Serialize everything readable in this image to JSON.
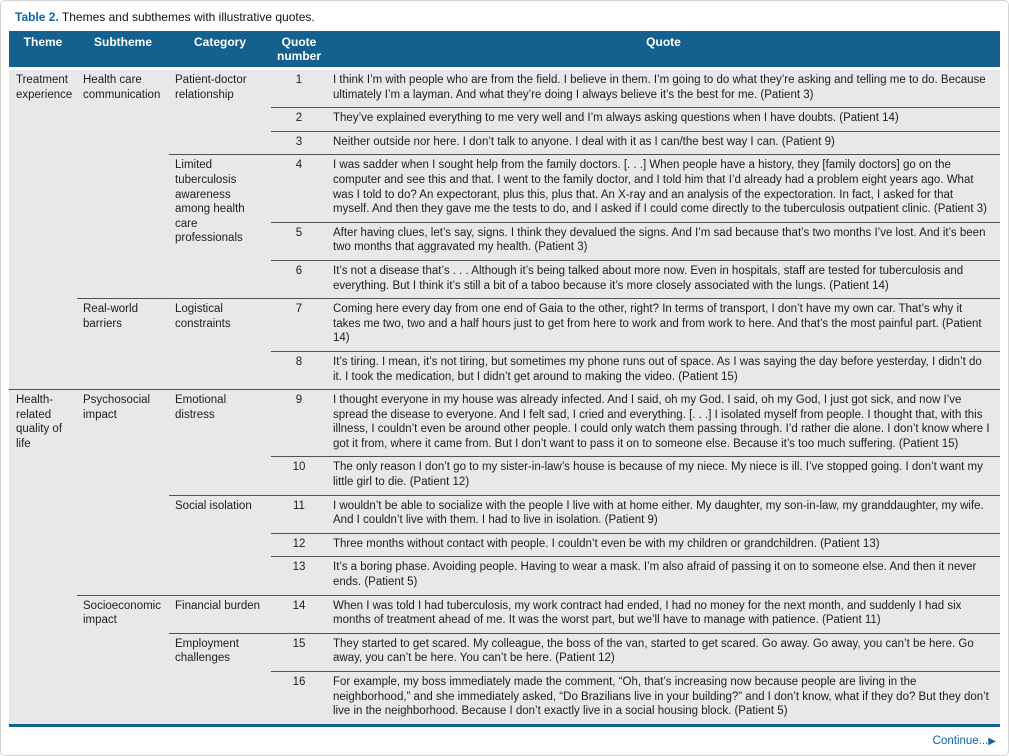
{
  "caption": {
    "label": "Table 2.",
    "text": " Themes and subthemes with illustrative quotes."
  },
  "columns": {
    "theme": "Theme",
    "subtheme": "Subtheme",
    "category": "Category",
    "quote_number": "Quote number",
    "quote": "Quote"
  },
  "footer": {
    "continue_label": "Continue...",
    "continue_arrow": "▶"
  },
  "colors": {
    "header_bg": "#14608f",
    "accent_blue": "#0c66a8",
    "row_bg": "#e7e8e9",
    "divider": "#4f5052"
  },
  "rows": [
    {
      "theme": "Treatment experience",
      "subtheme": "Health care communication",
      "category": "Patient-doctor relationship",
      "number": "1",
      "quote": "I think I’m with people who are from the field. I believe in them. I’m going to do what they’re asking and telling me to do. Because ultimately I’m a layman. And what they’re doing I always believe it’s the best for me. (Patient 3)"
    },
    {
      "number": "2",
      "quote": "They’ve explained everything to me very well and I’m always asking questions when I have doubts. (Patient 14)"
    },
    {
      "number": "3",
      "quote": "Neither outside nor here. I don’t talk to anyone. I deal with it as I can/the best way I can. (Patient 9)"
    },
    {
      "category": "Limited tuberculosis awareness among health care professionals",
      "number": "4",
      "quote": "I was sadder when I sought help from the family doctors. [. . .] When people have a history, they [family doctors] go on the computer and see this and that. I went to the family doctor, and I told him that I’d already had a problem eight years ago. What was I told to do? An expectorant, plus this, plus that. An X-ray and an analysis of the expectoration. In fact, I asked for that myself. And then they gave me the tests to do, and I asked if I could come directly to the tuberculosis outpatient clinic. (Patient 3)"
    },
    {
      "number": "5",
      "quote": "After having clues, let’s say, signs. I think they devalued the signs. And I’m sad because that’s two months I’ve lost. And it’s been two months that aggravated my health. (Patient 3)"
    },
    {
      "number": "6",
      "quote": "It’s not a disease that’s . . . Although it’s being talked about more now. Even in hospitals, staff are tested for tuberculosis and everything. But I think it’s still a bit of a taboo because it’s more closely associated with the lungs. (Patient 14)"
    },
    {
      "subtheme": "Real-world barriers",
      "category": "Logistical constraints",
      "number": "7",
      "quote": "Coming here every day from one end of Gaia to the other, right? In terms of transport, I don’t have my own car. That’s why it takes me two, two and a half hours just to get from here to work and from work to here. And that’s the most painful part. (Patient 14)"
    },
    {
      "number": "8",
      "quote": "It’s tiring. I mean, it’s not tiring, but sometimes my phone runs out of space. As I was saying the day before yesterday, I didn’t do it. I took the medication, but I didn’t get around to making the video. (Patient 15)"
    },
    {
      "theme": "Health-related quality of life",
      "subtheme": "Psychosocial impact",
      "category": "Emotional distress",
      "number": "9",
      "quote": "I thought everyone in my house was already infected. And I said, oh my God. I said, oh my God, I just got sick, and now I’ve spread the disease to everyone. And I felt sad, I cried and everything. [. . .] I isolated myself from people. I thought that, with this illness, I couldn’t even be around other people. I could only watch them passing through. I’d rather die alone. I don’t know where I got it from, where it came from. But I don’t want to pass it on to someone else. Because it’s too much suffering. (Patient 15)"
    },
    {
      "number": "10",
      "quote": "The only reason I don’t go to my sister-in-law’s house is because of my niece. My niece is ill. I’ve stopped going. I don’t want my little girl to die. (Patient 12)"
    },
    {
      "category": "Social isolation",
      "number": "11",
      "quote": "I wouldn’t be able to socialize with the people I live with at home either. My daughter, my son-in-law, my granddaughter, my wife. And I couldn’t live with them. I had to live in isolation. (Patient 9)"
    },
    {
      "number": "12",
      "quote": "Three months without contact with people. I couldn’t even be with my children or grandchildren. (Patient 13)"
    },
    {
      "number": "13",
      "quote": "It’s a boring phase. Avoiding people. Having to wear a mask. I’m also afraid of passing it on to someone else. And then it never ends. (Patient 5)"
    },
    {
      "subtheme": "Socioeconomic impact",
      "category": "Financial burden",
      "number": "14",
      "quote": "When I was told I had tuberculosis, my work contract had ended, I had no money for the next month, and suddenly I had six months of treatment ahead of me. It was the worst part, but we’ll have to manage with patience. (Patient 11)"
    },
    {
      "category": "Employment challenges",
      "number": "15",
      "quote": "They started to get scared. My colleague, the boss of the van, started to get scared. Go away. Go away, you can’t be here. Go away, you can’t be here. You can’t be here. (Patient 12)"
    },
    {
      "number": "16",
      "quote": "For example, my boss immediately made the comment, “Oh, that’s increasing now because people are living in the neighborhood,” and she immediately asked, “Do Brazilians live in your building?” and I don’t know, what if they do? But they don’t live in the neighborhood. Because I don’t exactly live in a social housing block. (Patient 5)"
    }
  ]
}
